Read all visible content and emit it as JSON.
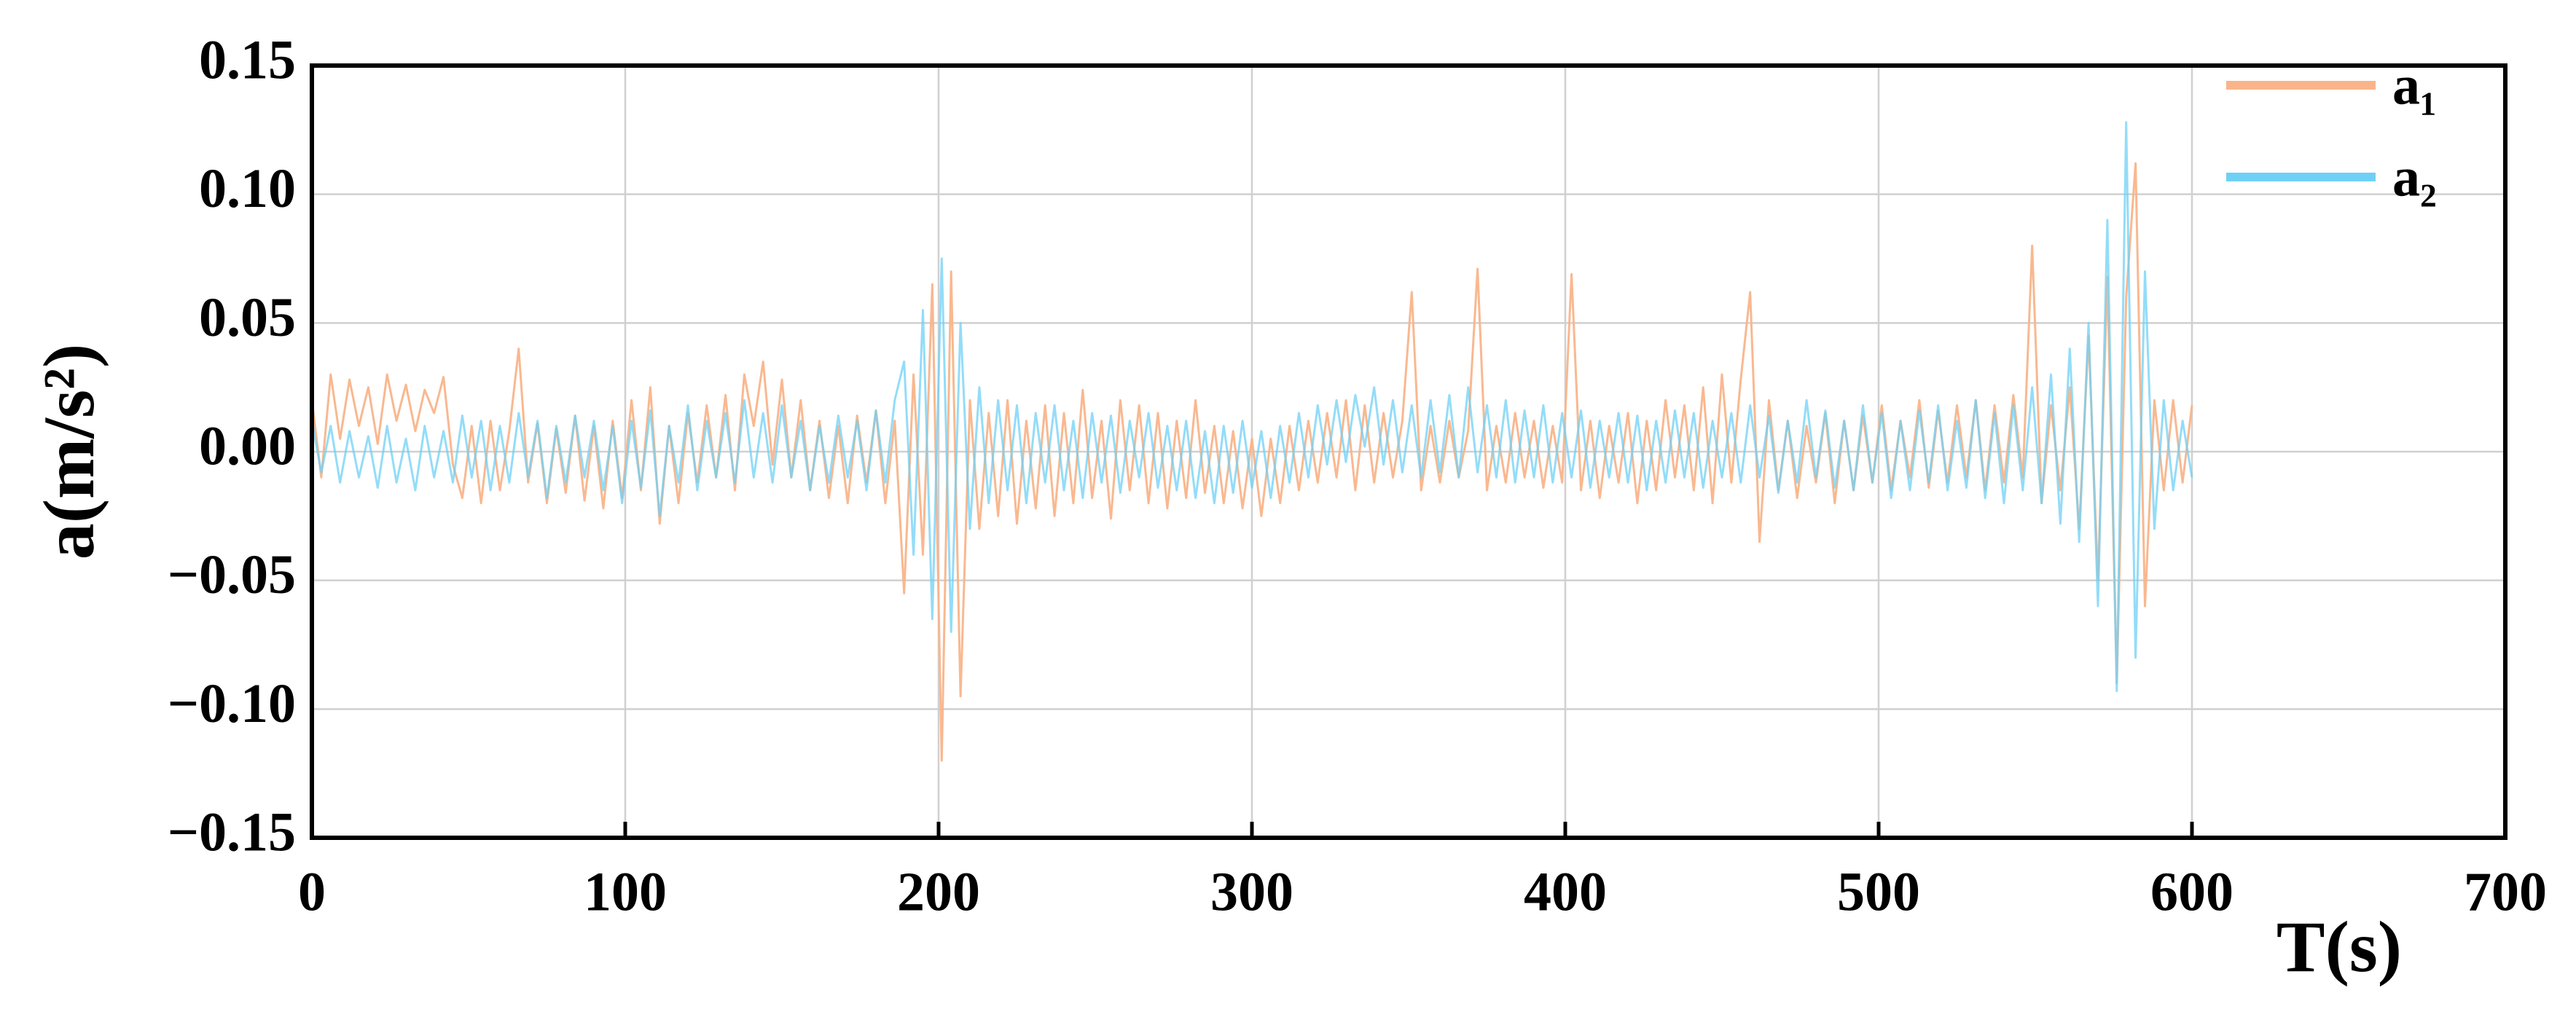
{
  "chart_data": {
    "type": "line",
    "y_label": "a(m/s²)",
    "x_label": "T(s)",
    "x": [
      0,
      3,
      6,
      9,
      12,
      15,
      18,
      21,
      24,
      27,
      30,
      33,
      36,
      39,
      42,
      45,
      48,
      51,
      54,
      57,
      60,
      63,
      66,
      69,
      72,
      75,
      78,
      81,
      84,
      87,
      90,
      93,
      96,
      99,
      102,
      105,
      108,
      111,
      114,
      117,
      120,
      123,
      126,
      129,
      132,
      135,
      138,
      141,
      144,
      147,
      150,
      153,
      156,
      159,
      162,
      165,
      168,
      171,
      174,
      177,
      180,
      183,
      186,
      189,
      192,
      195,
      198,
      201,
      204,
      207,
      210,
      213,
      216,
      219,
      222,
      225,
      228,
      231,
      234,
      237,
      240,
      243,
      246,
      249,
      252,
      255,
      258,
      261,
      264,
      267,
      270,
      273,
      276,
      279,
      282,
      285,
      288,
      291,
      294,
      297,
      300,
      303,
      306,
      309,
      312,
      315,
      318,
      321,
      324,
      327,
      330,
      333,
      336,
      339,
      342,
      345,
      348,
      351,
      354,
      357,
      360,
      363,
      366,
      369,
      372,
      375,
      378,
      381,
      384,
      387,
      390,
      393,
      396,
      399,
      402,
      405,
      408,
      411,
      414,
      417,
      420,
      423,
      426,
      429,
      432,
      435,
      438,
      441,
      444,
      447,
      450,
      453,
      456,
      459,
      462,
      465,
      468,
      471,
      474,
      477,
      480,
      483,
      486,
      489,
      492,
      495,
      498,
      501,
      504,
      507,
      510,
      513,
      516,
      519,
      522,
      525,
      528,
      531,
      534,
      537,
      540,
      543,
      546,
      549,
      552,
      555,
      558,
      561,
      564,
      567,
      570,
      573,
      576,
      579,
      582,
      585,
      588,
      591,
      594,
      597,
      600
    ],
    "series": [
      {
        "name": "a₁",
        "color": "#f9b48a",
        "values": [
          0.02,
          -0.01,
          0.03,
          0.005,
          0.028,
          0.01,
          0.025,
          0.003,
          0.03,
          0.012,
          0.026,
          0.008,
          0.024,
          0.015,
          0.029,
          -0.005,
          -0.018,
          0.01,
          -0.02,
          0.012,
          -0.015,
          0.008,
          0.04,
          -0.012,
          0.011,
          -0.02,
          0.009,
          -0.016,
          0.014,
          -0.019,
          0.01,
          -0.022,
          0.012,
          -0.018,
          0.02,
          -0.015,
          0.025,
          -0.028,
          0.01,
          -0.02,
          0.015,
          -0.012,
          0.018,
          -0.01,
          0.022,
          -0.015,
          0.03,
          0.01,
          0.035,
          -0.005,
          0.028,
          -0.01,
          0.02,
          -0.015,
          0.012,
          -0.018,
          0.01,
          -0.02,
          0.014,
          -0.012,
          0.016,
          -0.02,
          0.012,
          -0.055,
          0.03,
          -0.04,
          0.065,
          -0.12,
          0.07,
          -0.095,
          0.02,
          -0.03,
          0.015,
          -0.025,
          0.02,
          -0.028,
          0.012,
          -0.022,
          0.018,
          -0.025,
          0.015,
          -0.02,
          0.024,
          -0.018,
          0.012,
          -0.026,
          0.02,
          -0.015,
          0.018,
          -0.02,
          0.015,
          -0.022,
          0.012,
          -0.018,
          0.02,
          -0.016,
          0.01,
          -0.02,
          0.008,
          -0.022,
          0.005,
          -0.025,
          0.005,
          -0.02,
          0.01,
          -0.015,
          0.012,
          -0.012,
          0.015,
          -0.01,
          0.02,
          -0.015,
          0.018,
          -0.012,
          0.015,
          -0.01,
          0.012,
          0.062,
          -0.015,
          0.01,
          -0.012,
          0.012,
          -0.01,
          0.008,
          0.071,
          -0.015,
          0.01,
          -0.012,
          0.015,
          -0.01,
          0.012,
          -0.014,
          0.01,
          -0.012,
          0.069,
          -0.015,
          0.012,
          -0.018,
          0.01,
          -0.012,
          0.015,
          -0.02,
          0.012,
          -0.015,
          0.02,
          -0.01,
          0.018,
          -0.015,
          0.025,
          -0.02,
          0.03,
          -0.012,
          0.028,
          0.062,
          -0.035,
          0.02,
          -0.015,
          0.012,
          -0.018,
          0.01,
          -0.012,
          0.015,
          -0.02,
          0.012,
          -0.015,
          0.014,
          -0.012,
          0.018,
          -0.015,
          0.012,
          -0.01,
          0.02,
          -0.014,
          0.016,
          -0.012,
          0.018,
          -0.01,
          0.02,
          -0.015,
          0.018,
          -0.012,
          0.022,
          -0.01,
          0.08,
          -0.02,
          0.018,
          -0.015,
          0.025,
          -0.03,
          0.045,
          -0.05,
          0.068,
          -0.09,
          0.06,
          0.112,
          -0.06,
          0.02,
          -0.015,
          0.02,
          -0.012,
          0.018
        ]
      },
      {
        "name": "a₂",
        "color": "#6fd0f6",
        "values": [
          0.012,
          -0.008,
          0.01,
          -0.012,
          0.008,
          -0.01,
          0.006,
          -0.014,
          0.01,
          -0.012,
          0.005,
          -0.015,
          0.01,
          -0.01,
          0.008,
          -0.012,
          0.014,
          -0.01,
          0.012,
          -0.015,
          0.01,
          -0.012,
          0.015,
          -0.01,
          0.012,
          -0.018,
          0.01,
          -0.012,
          0.014,
          -0.01,
          0.012,
          -0.015,
          0.01,
          -0.02,
          0.012,
          -0.014,
          0.016,
          -0.025,
          0.01,
          -0.012,
          0.018,
          -0.015,
          0.012,
          -0.01,
          0.015,
          -0.012,
          0.02,
          -0.01,
          0.015,
          -0.012,
          0.018,
          -0.01,
          0.012,
          -0.015,
          0.01,
          -0.012,
          0.014,
          -0.01,
          0.012,
          -0.015,
          0.016,
          -0.012,
          0.02,
          0.035,
          -0.04,
          0.055,
          -0.065,
          0.075,
          -0.07,
          0.05,
          -0.03,
          0.025,
          -0.02,
          0.02,
          -0.015,
          0.018,
          -0.02,
          0.015,
          -0.012,
          0.018,
          -0.015,
          0.012,
          -0.018,
          0.015,
          -0.012,
          0.014,
          -0.016,
          0.012,
          -0.01,
          0.015,
          -0.014,
          0.01,
          -0.015,
          0.012,
          -0.018,
          0.008,
          -0.02,
          0.01,
          -0.016,
          0.012,
          -0.014,
          0.008,
          -0.018,
          0.01,
          -0.012,
          0.015,
          -0.01,
          0.018,
          -0.005,
          0.02,
          -0.004,
          0.022,
          0.002,
          0.025,
          -0.005,
          0.02,
          -0.008,
          0.018,
          -0.01,
          0.02,
          -0.008,
          0.022,
          -0.01,
          0.025,
          -0.008,
          0.018,
          -0.01,
          0.02,
          -0.012,
          0.016,
          -0.01,
          0.018,
          -0.012,
          0.015,
          -0.01,
          0.016,
          -0.014,
          0.012,
          -0.01,
          0.015,
          -0.012,
          0.014,
          -0.015,
          0.012,
          -0.012,
          0.016,
          -0.01,
          0.015,
          -0.014,
          0.012,
          -0.01,
          0.015,
          -0.012,
          0.018,
          -0.01,
          0.014,
          -0.016,
          0.012,
          -0.012,
          0.02,
          -0.01,
          0.016,
          -0.014,
          0.012,
          -0.015,
          0.018,
          -0.012,
          0.015,
          -0.018,
          0.012,
          -0.015,
          0.016,
          -0.012,
          0.018,
          -0.015,
          0.012,
          -0.014,
          0.02,
          -0.018,
          0.015,
          -0.02,
          0.018,
          -0.015,
          0.025,
          -0.02,
          0.03,
          -0.028,
          0.04,
          -0.035,
          0.05,
          -0.06,
          0.09,
          -0.093,
          0.128,
          -0.08,
          0.07,
          -0.03,
          0.02,
          -0.015,
          0.012,
          -0.01
        ]
      }
    ],
    "xlim": [
      0,
      700
    ],
    "xticks": [
      0,
      100,
      200,
      300,
      400,
      500,
      600,
      700
    ],
    "ylim": [
      -0.15,
      0.15
    ],
    "yticks": [
      {
        "value": -0.15,
        "label": "−0.15"
      },
      {
        "value": -0.1,
        "label": "−0.10"
      },
      {
        "value": -0.05,
        "label": "−0.05"
      },
      {
        "value": 0,
        "label": "0.00"
      },
      0.05,
      {
        "value": 0.1,
        "label": "0.10"
      },
      0.15
    ],
    "grid": true,
    "legend": "upper right"
  }
}
